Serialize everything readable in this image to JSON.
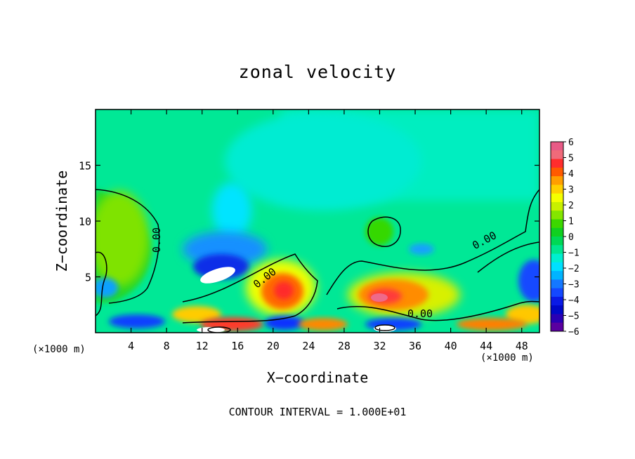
{
  "chart_data": {
    "type": "contour",
    "title": "zonal velocity",
    "xlabel": "X−coordinate",
    "ylabel": "Z−coordinate",
    "x_unit": "(×1000 m)",
    "xlim": [
      0,
      50
    ],
    "ylim": [
      0,
      20
    ],
    "x_ticks": [
      4,
      8,
      12,
      16,
      20,
      24,
      28,
      32,
      36,
      40,
      44,
      48
    ],
    "y_ticks": [
      5,
      10,
      15
    ],
    "contour_label": "0.00",
    "contour_interval_text": "CONTOUR INTERVAL = 1.000E+01",
    "colorbar": {
      "ticks": [
        6,
        5,
        4,
        3,
        2,
        1,
        0,
        -1,
        -2,
        -3,
        -4,
        -5,
        -6
      ],
      "tick_labels": [
        "6",
        "5",
        "4",
        "3",
        "2",
        "1",
        "0",
        "−1",
        "−2",
        "−3",
        "−4",
        "−5",
        "−6"
      ],
      "colors": [
        "#e85a86",
        "#f06a7a",
        "#ff2d2d",
        "#ff5a00",
        "#ff9e00",
        "#ffd000",
        "#f5ff00",
        "#c8f000",
        "#84e600",
        "#3cd800",
        "#10d020",
        "#00d855",
        "#00e690",
        "#00efd0",
        "#00e0ff",
        "#00b4ff",
        "#1478ff",
        "#1448ff",
        "#0a1ae6",
        "#0008c8",
        "#2a00b4",
        "#5a00a0"
      ]
    },
    "features": [
      {
        "kind": "high",
        "x": 33,
        "z": 3,
        "value": 5
      },
      {
        "kind": "high",
        "x": 21,
        "z": 3.5,
        "value": 4
      },
      {
        "kind": "low",
        "x": 14,
        "z": 5,
        "value": -6
      },
      {
        "kind": "low",
        "x": 49,
        "z": 4.5,
        "value": -4
      },
      {
        "kind": "positive-region",
        "x": 4,
        "z": 8,
        "value": 1
      }
    ]
  }
}
